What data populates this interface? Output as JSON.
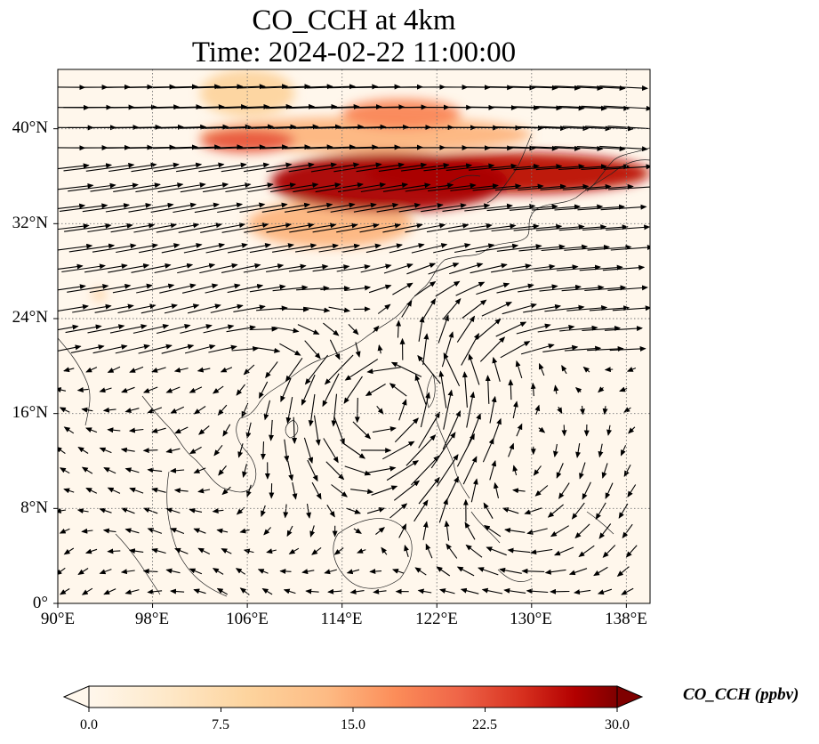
{
  "title": {
    "line1": "CO_CCH at 4km",
    "line2": "Time: 2024-02-22 11:00:00"
  },
  "chart_data": {
    "type": "heatmap",
    "subtype": "map with wind vectors",
    "title": "CO_CCH at 4km",
    "subtitle": "Time: 2024-02-22 11:00:00",
    "lon_range": [
      90,
      140
    ],
    "lat_range": [
      0,
      45
    ],
    "x_ticks": [
      {
        "value": 90,
        "label": "90°E"
      },
      {
        "value": 98,
        "label": "98°E"
      },
      {
        "value": 106,
        "label": "106°E"
      },
      {
        "value": 114,
        "label": "114°E"
      },
      {
        "value": 122,
        "label": "122°E"
      },
      {
        "value": 130,
        "label": "130°E"
      },
      {
        "value": 138,
        "label": "138°E"
      }
    ],
    "y_ticks": [
      {
        "value": 0,
        "label": "0°"
      },
      {
        "value": 8,
        "label": "8°N"
      },
      {
        "value": 16,
        "label": "16°N"
      },
      {
        "value": 24,
        "label": "24°N"
      },
      {
        "value": 32,
        "label": "32°N"
      },
      {
        "value": 40,
        "label": "40°N"
      }
    ],
    "gridlines": true,
    "colorbar": {
      "label": "CO_CCH (ppbv)",
      "min": 0,
      "max": 30,
      "extend": "both",
      "colormap": "OrRd",
      "ticks": [
        {
          "value": 0,
          "label": "0.0"
        },
        {
          "value": 7.5,
          "label": "7.5"
        },
        {
          "value": 15,
          "label": "15.0"
        },
        {
          "value": 22.5,
          "label": "22.5"
        },
        {
          "value": 30,
          "label": "30.0"
        }
      ],
      "placement": "bottom"
    },
    "plume_regions": [
      {
        "lon": [
          108,
          128
        ],
        "lat": [
          33,
          38
        ],
        "value": 28
      },
      {
        "lon": [
          116,
          140
        ],
        "lat": [
          34.5,
          38
        ],
        "value": 27
      },
      {
        "lon": [
          102,
          110
        ],
        "lat": [
          38,
          40
        ],
        "value": 22
      },
      {
        "lon": [
          106,
          120
        ],
        "lat": [
          30,
          34
        ],
        "value": 14
      },
      {
        "lon": [
          102,
          130
        ],
        "lat": [
          38,
          41
        ],
        "value": 14
      },
      {
        "lon": [
          114,
          124
        ],
        "lat": [
          40,
          42.5
        ],
        "value": 18
      },
      {
        "lon": [
          93,
          94
        ],
        "lat": [
          25.5,
          26.5
        ],
        "value": 10
      },
      {
        "lon": [
          102,
          110
        ],
        "lat": [
          41,
          45
        ],
        "value": 9
      }
    ],
    "wind": {
      "description": "westerly jet north of ~22°N, cyclonic circulation near 118°E 17°N, weaker easterlies in the south"
    },
    "colors": {
      "low": "#fff7ec",
      "mid": "#fdd49e",
      "high": "#ef6548",
      "max": "#7f0000"
    }
  }
}
